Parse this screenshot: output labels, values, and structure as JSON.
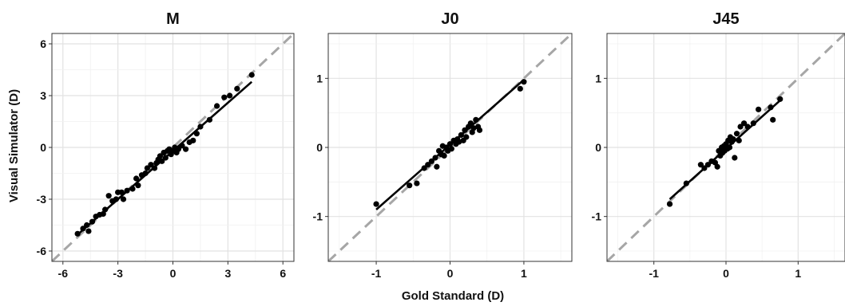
{
  "xlabel": "Gold Standard (D)",
  "ylabel": "Visual Simulator (D)",
  "chart_data": [
    {
      "type": "scatter",
      "title": "M",
      "xlim": [
        -6.6,
        6.6
      ],
      "ylim": [
        -6.6,
        6.6
      ],
      "xticks": [
        -6,
        -3,
        0,
        3,
        6
      ],
      "yticks": [
        -6,
        -3,
        0,
        3,
        6
      ],
      "xtick_labels": [
        "-6",
        "-3",
        "0",
        "3",
        "6"
      ],
      "ytick_labels": [
        "-6",
        "-3",
        "0",
        "3",
        "6"
      ],
      "fit": [
        [
          -5.2,
          -5.05
        ],
        [
          4.3,
          3.8
        ]
      ],
      "identity_line": true,
      "grid": true,
      "points": [
        [
          -5.2,
          -5.0
        ],
        [
          -4.9,
          -4.7
        ],
        [
          -4.7,
          -4.5
        ],
        [
          -4.6,
          -4.85
        ],
        [
          -4.4,
          -4.3
        ],
        [
          -4.2,
          -4.0
        ],
        [
          -4.0,
          -3.9
        ],
        [
          -3.8,
          -3.85
        ],
        [
          -3.7,
          -3.6
        ],
        [
          -3.5,
          -2.8
        ],
        [
          -3.3,
          -3.1
        ],
        [
          -3.1,
          -3.0
        ],
        [
          -3.0,
          -2.6
        ],
        [
          -2.8,
          -2.6
        ],
        [
          -2.7,
          -3.0
        ],
        [
          -2.5,
          -2.5
        ],
        [
          -2.2,
          -2.4
        ],
        [
          -2.0,
          -1.8
        ],
        [
          -1.9,
          -2.2
        ],
        [
          -1.7,
          -1.6
        ],
        [
          -1.5,
          -1.5
        ],
        [
          -1.4,
          -1.2
        ],
        [
          -1.2,
          -1.0
        ],
        [
          -1.0,
          -1.2
        ],
        [
          -0.9,
          -0.9
        ],
        [
          -0.8,
          -0.7
        ],
        [
          -0.7,
          -0.5
        ],
        [
          -0.6,
          -0.8
        ],
        [
          -0.5,
          -0.3
        ],
        [
          -0.4,
          -0.6
        ],
        [
          -0.3,
          -0.2
        ],
        [
          -0.2,
          -0.1
        ],
        [
          -0.1,
          -0.4
        ],
        [
          0.0,
          -0.2
        ],
        [
          0.1,
          0.0
        ],
        [
          0.2,
          -0.3
        ],
        [
          0.3,
          -0.1
        ],
        [
          0.5,
          0.1
        ],
        [
          0.7,
          -0.1
        ],
        [
          0.9,
          0.3
        ],
        [
          1.1,
          0.4
        ],
        [
          1.3,
          0.8
        ],
        [
          1.5,
          1.2
        ],
        [
          2.0,
          1.6
        ],
        [
          2.4,
          2.4
        ],
        [
          2.8,
          2.9
        ],
        [
          3.1,
          3.0
        ],
        [
          3.5,
          3.4
        ],
        [
          4.3,
          4.2
        ]
      ]
    },
    {
      "type": "scatter",
      "title": "J0",
      "xlim": [
        -1.65,
        1.65
      ],
      "ylim": [
        -1.65,
        1.65
      ],
      "xticks": [
        -1,
        0,
        1
      ],
      "yticks": [
        -1,
        0,
        1
      ],
      "xtick_labels": [
        "-1",
        "0",
        "1"
      ],
      "ytick_labels": [
        "-1",
        "0",
        "1"
      ],
      "fit": [
        [
          -1.0,
          -0.9
        ],
        [
          1.0,
          0.98
        ]
      ],
      "identity_line": true,
      "grid": true,
      "points": [
        [
          -1.0,
          -0.82
        ],
        [
          -0.55,
          -0.55
        ],
        [
          -0.45,
          -0.52
        ],
        [
          -0.35,
          -0.3
        ],
        [
          -0.3,
          -0.25
        ],
        [
          -0.25,
          -0.2
        ],
        [
          -0.2,
          -0.15
        ],
        [
          -0.18,
          -0.28
        ],
        [
          -0.15,
          -0.05
        ],
        [
          -0.12,
          -0.1
        ],
        [
          -0.1,
          0.02
        ],
        [
          -0.08,
          -0.12
        ],
        [
          -0.05,
          0.0
        ],
        [
          -0.03,
          -0.05
        ],
        [
          0.0,
          0.05
        ],
        [
          0.02,
          -0.02
        ],
        [
          0.05,
          0.1
        ],
        [
          0.08,
          0.05
        ],
        [
          0.1,
          0.12
        ],
        [
          0.12,
          0.08
        ],
        [
          0.15,
          0.18
        ],
        [
          0.18,
          0.1
        ],
        [
          0.2,
          0.25
        ],
        [
          0.22,
          0.15
        ],
        [
          0.25,
          0.3
        ],
        [
          0.28,
          0.35
        ],
        [
          0.3,
          0.22
        ],
        [
          0.32,
          0.28
        ],
        [
          0.35,
          0.4
        ],
        [
          0.38,
          0.3
        ],
        [
          0.4,
          0.25
        ],
        [
          0.95,
          0.85
        ],
        [
          1.0,
          0.95
        ]
      ]
    },
    {
      "type": "scatter",
      "title": "J45",
      "xlim": [
        -1.65,
        1.65
      ],
      "ylim": [
        -1.65,
        1.65
      ],
      "xticks": [
        -1,
        0,
        1
      ],
      "yticks": [
        -1,
        0,
        1
      ],
      "xtick_labels": [
        "-1",
        "0",
        "1"
      ],
      "ytick_labels": [
        "-1",
        "0",
        "1"
      ],
      "fit": [
        [
          -0.78,
          -0.75
        ],
        [
          0.75,
          0.68
        ]
      ],
      "identity_line": true,
      "grid": true,
      "points": [
        [
          -0.78,
          -0.82
        ],
        [
          -0.55,
          -0.52
        ],
        [
          -0.35,
          -0.25
        ],
        [
          -0.3,
          -0.3
        ],
        [
          -0.25,
          -0.25
        ],
        [
          -0.2,
          -0.2
        ],
        [
          -0.15,
          -0.22
        ],
        [
          -0.12,
          -0.28
        ],
        [
          -0.1,
          -0.05
        ],
        [
          -0.08,
          -0.12
        ],
        [
          -0.06,
          0.0
        ],
        [
          -0.05,
          -0.08
        ],
        [
          -0.03,
          0.02
        ],
        [
          -0.02,
          -0.05
        ],
        [
          0.0,
          0.05
        ],
        [
          0.02,
          -0.02
        ],
        [
          0.03,
          0.1
        ],
        [
          0.05,
          0.0
        ],
        [
          0.06,
          0.15
        ],
        [
          0.08,
          0.08
        ],
        [
          0.1,
          0.12
        ],
        [
          0.12,
          -0.15
        ],
        [
          0.15,
          0.2
        ],
        [
          0.18,
          0.1
        ],
        [
          0.2,
          0.3
        ],
        [
          0.25,
          0.35
        ],
        [
          0.3,
          0.3
        ],
        [
          0.38,
          0.35
        ],
        [
          0.45,
          0.55
        ],
        [
          0.62,
          0.58
        ],
        [
          0.65,
          0.4
        ],
        [
          0.75,
          0.7
        ]
      ]
    }
  ]
}
